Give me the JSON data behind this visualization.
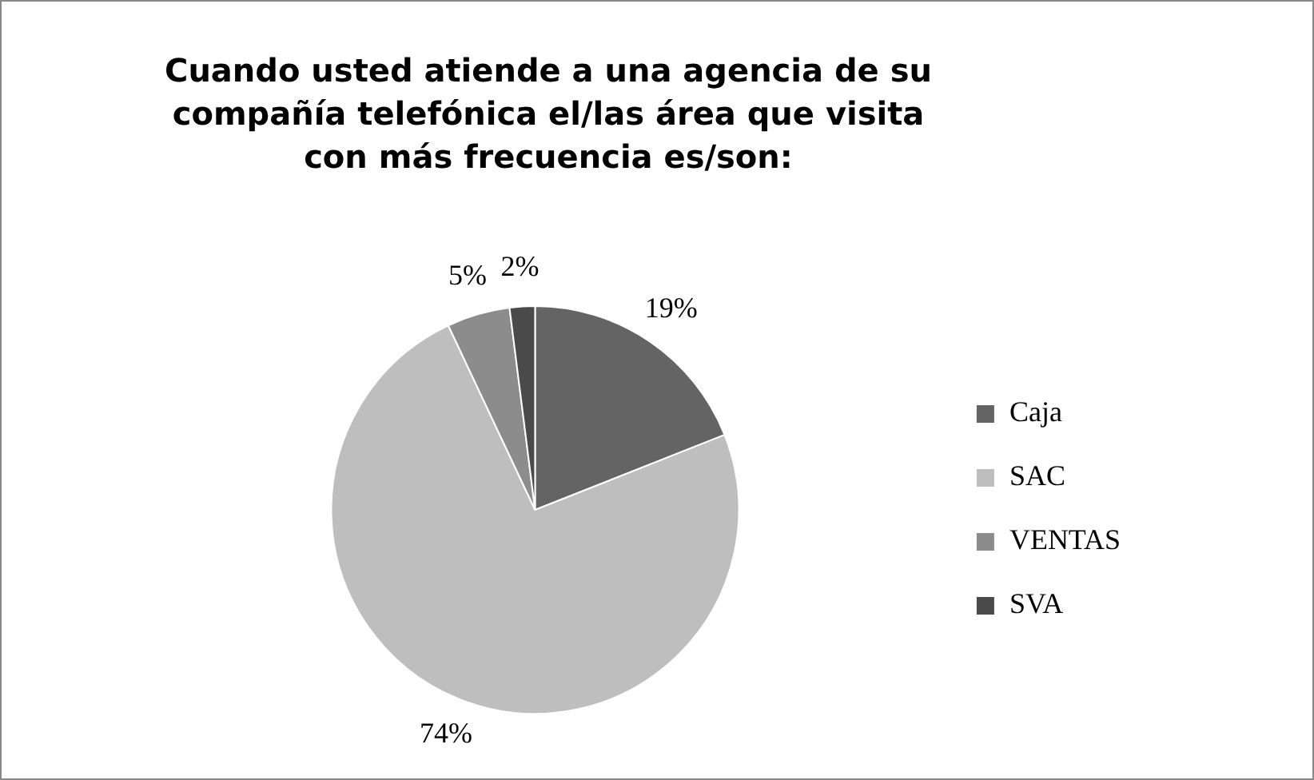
{
  "chart_data": {
    "type": "pie",
    "title": "Cuando usted atiende a una agencia de su compañía telefónica el/las área que visita con más frecuencia es/son:",
    "categories": [
      "Caja",
      "SAC",
      "VENTAS",
      "SVA"
    ],
    "values": [
      19,
      74,
      5,
      2
    ],
    "value_labels": [
      "19%",
      "74%",
      "5%",
      "2%"
    ],
    "colors": [
      "#646464",
      "#bebebe",
      "#8c8c8c",
      "#4a4a4a"
    ],
    "legend": "right"
  }
}
